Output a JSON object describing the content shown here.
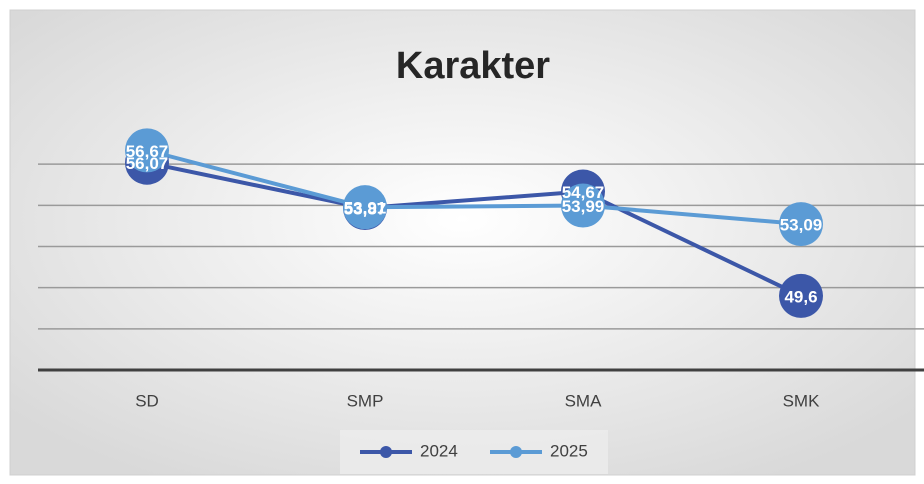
{
  "chart_data": {
    "type": "line",
    "title": "Karakter",
    "categories": [
      "SD",
      "SMP",
      "SMA",
      "SMK"
    ],
    "series": [
      {
        "name": "2024",
        "color": "#3c57a8",
        "values": [
          56.07,
          53.87,
          54.67,
          49.6
        ],
        "value_labels": [
          "56,07",
          "53,87",
          "54,67",
          "49,6"
        ]
      },
      {
        "name": "2025",
        "color": "#5b9bd5",
        "values": [
          56.67,
          53.91,
          53.99,
          53.09
        ],
        "value_labels": [
          "56,67",
          "53,91",
          "53,99",
          "53,09"
        ]
      }
    ],
    "ylim": [
      46,
      58
    ],
    "yticks": [
      46,
      48,
      50,
      52,
      54,
      56
    ],
    "grid": true,
    "legend": "bottom"
  }
}
